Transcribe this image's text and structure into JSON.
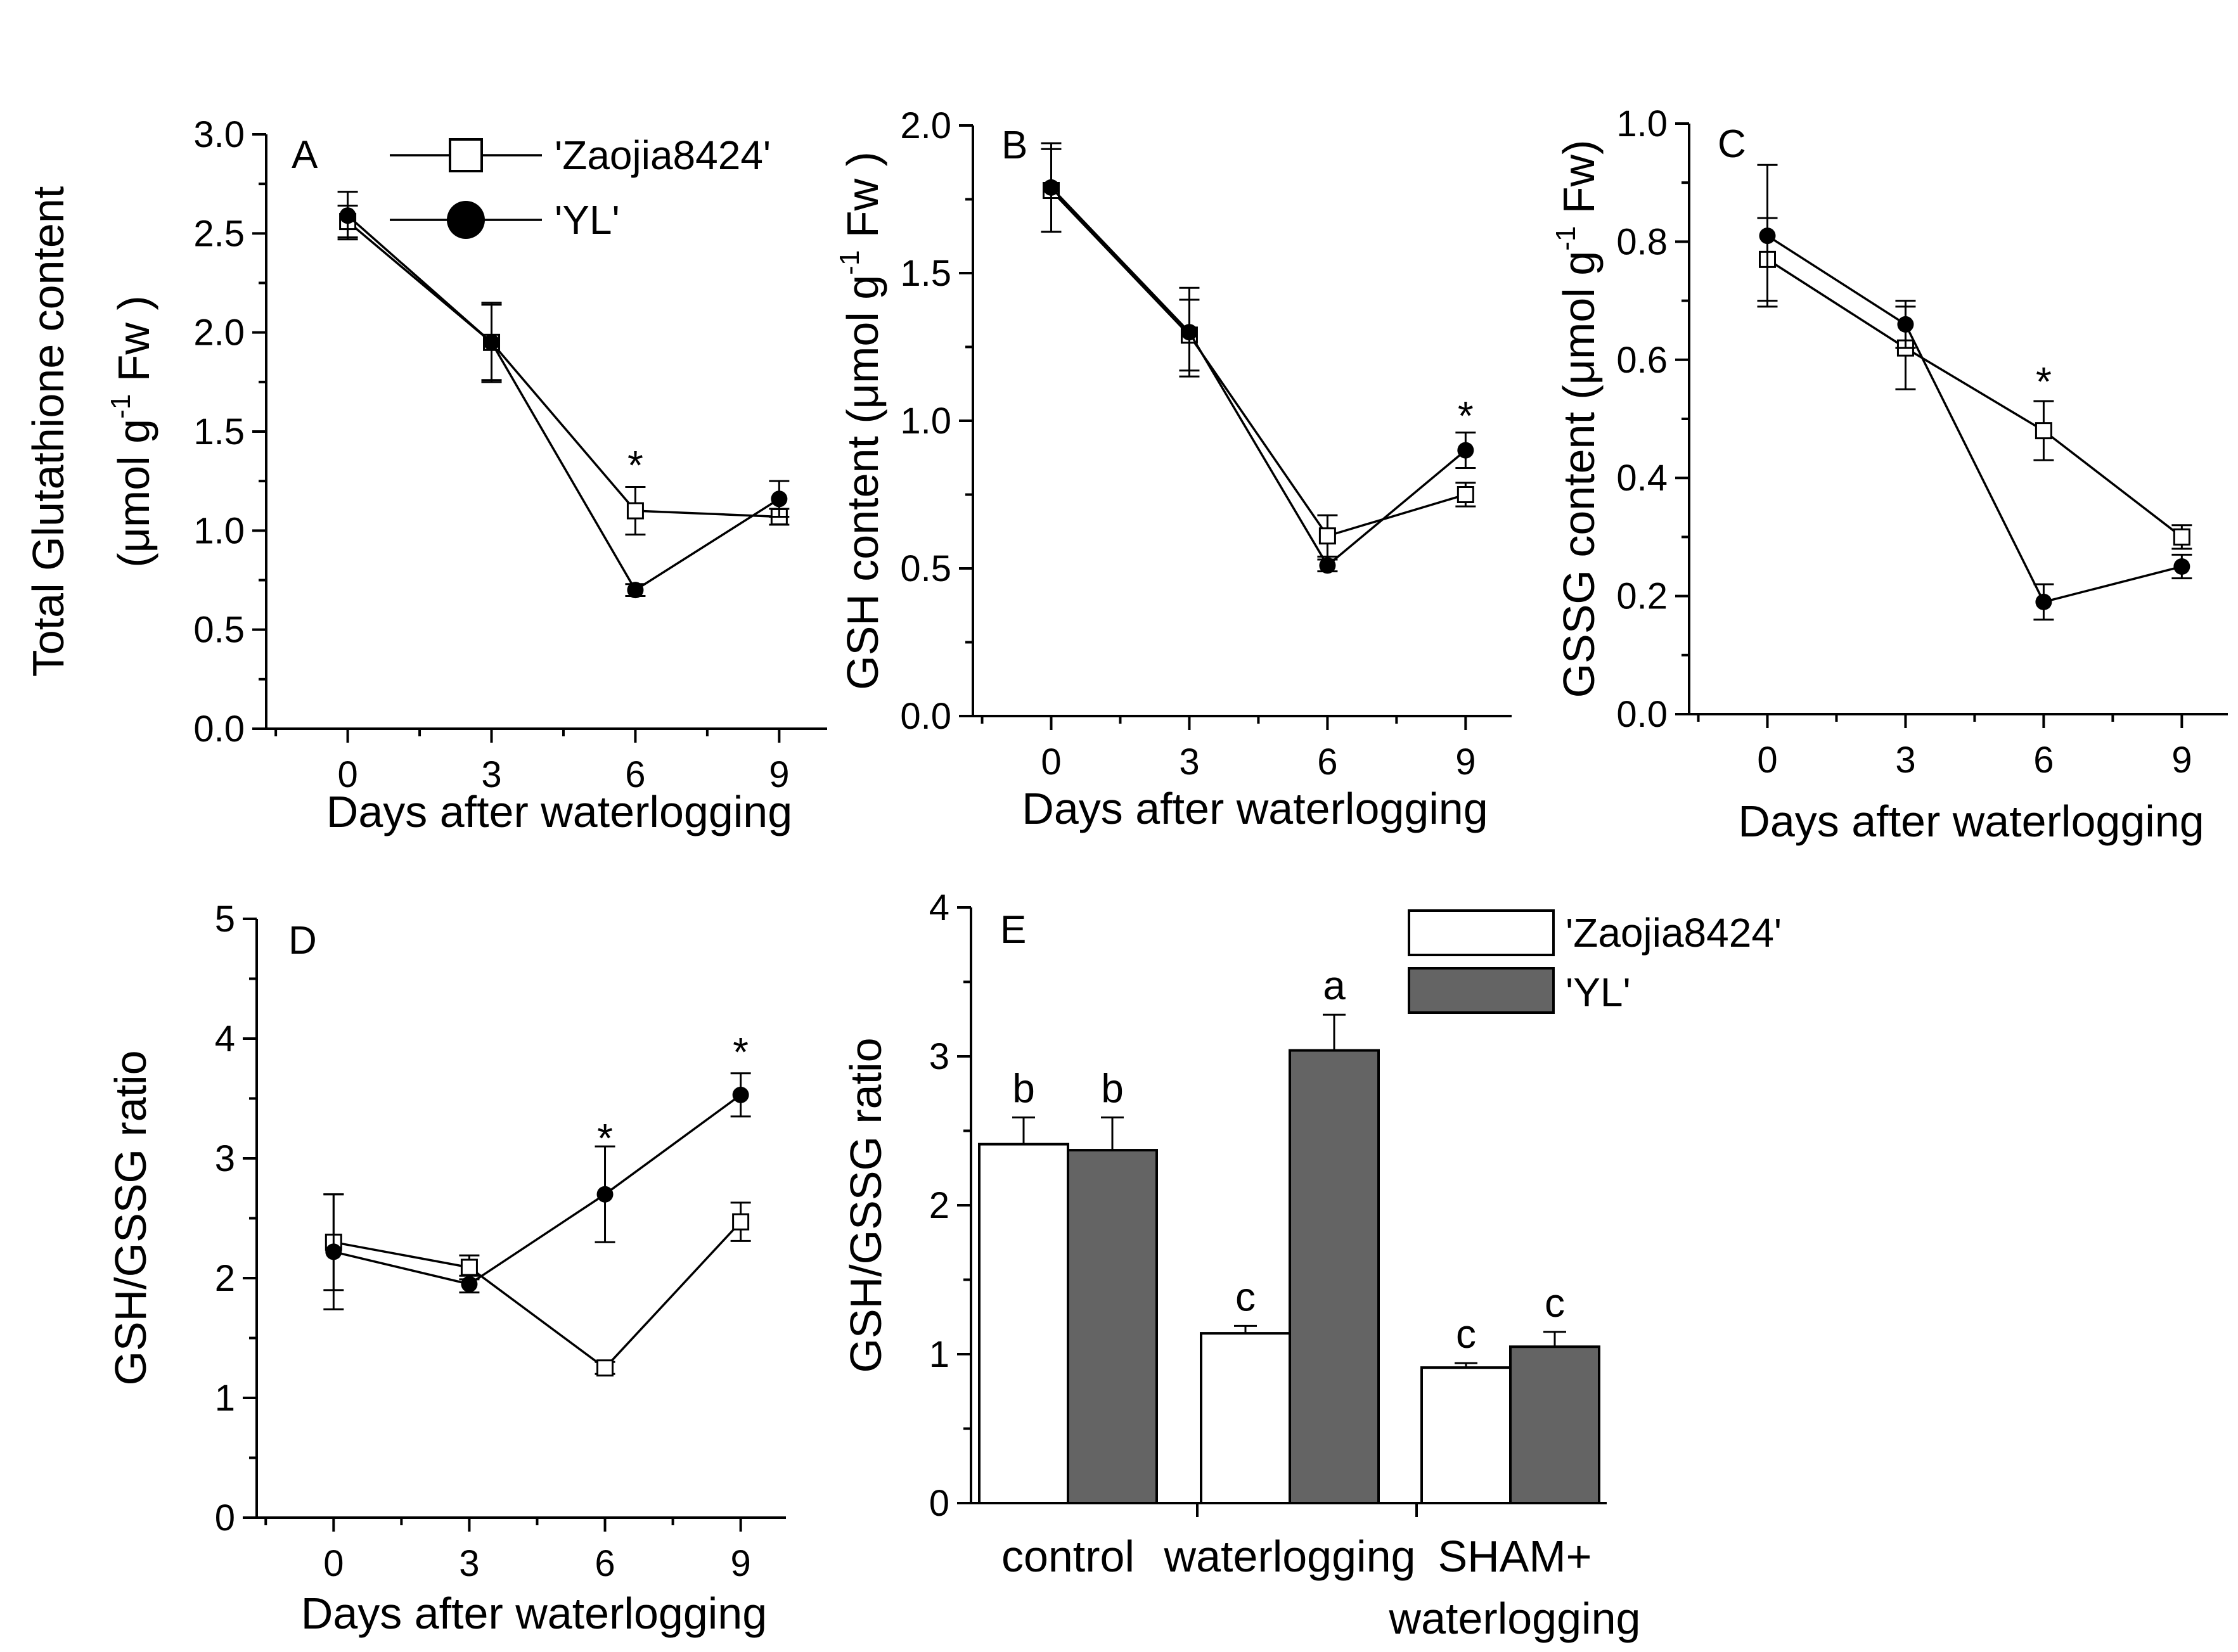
{
  "colors": {
    "open": "#ffffff",
    "filled": "#000000",
    "bar_dark": "#646464",
    "axis": "#000000"
  },
  "legend": {
    "series1": "'Zaojia8424'",
    "series2": "'YL'"
  },
  "chart_data": [
    {
      "id": "A",
      "type": "line",
      "panel_label": "A",
      "title": "",
      "xlabel": "Days after waterlogging",
      "ylabel_line1": "Total Glutathione content",
      "ylabel_line2_prefix": "(μmol g",
      "ylabel_sup": "-1",
      "ylabel_line2_suffix": " Fw )",
      "x": [
        0,
        3,
        6,
        9
      ],
      "xticks": [
        "0",
        "3",
        "6",
        "9"
      ],
      "ylim": [
        0,
        3.0
      ],
      "yticks": [
        "0.0",
        "0.5",
        "1.0",
        "1.5",
        "2.0",
        "2.5",
        "3.0"
      ],
      "series": [
        {
          "name": "'Zaojia8424'",
          "marker": "open-square",
          "values": [
            2.56,
            1.95,
            1.1,
            1.07
          ],
          "errors": [
            0.08,
            0.2,
            0.12,
            0.04
          ]
        },
        {
          "name": "'YL'",
          "marker": "filled-circle",
          "values": [
            2.59,
            1.95,
            0.7,
            1.16
          ],
          "errors": [
            0.12,
            0.19,
            0.03,
            0.09
          ]
        }
      ],
      "significance": [
        {
          "x": 6,
          "y": 1.35,
          "label": "*"
        }
      ],
      "legend_inside": true
    },
    {
      "id": "B",
      "type": "line",
      "panel_label": "B",
      "title": "",
      "xlabel": "Days after waterlogging",
      "ylabel_line1": "",
      "ylabel_line2_prefix": "GSH content (μmol g",
      "ylabel_sup": "-1",
      "ylabel_line2_suffix": " Fw )",
      "x": [
        0,
        3,
        6,
        9
      ],
      "xticks": [
        "0",
        "3",
        "6",
        "9"
      ],
      "ylim": [
        0,
        2.0
      ],
      "yticks": [
        "0.0",
        "0.5",
        "1.0",
        "1.5",
        "2.0"
      ],
      "series": [
        {
          "name": "'Zaojia8424'",
          "marker": "open-square",
          "values": [
            1.78,
            1.29,
            0.61,
            0.75
          ],
          "errors": [
            0.14,
            0.12,
            0.07,
            0.04
          ]
        },
        {
          "name": "'YL'",
          "marker": "filled-circle",
          "values": [
            1.79,
            1.3,
            0.51,
            0.9
          ],
          "errors": [
            0.15,
            0.15,
            0.02,
            0.06
          ]
        }
      ],
      "significance": [
        {
          "x": 9,
          "y": 1.03,
          "label": "*"
        }
      ]
    },
    {
      "id": "C",
      "type": "line",
      "panel_label": "C",
      "title": "",
      "xlabel": "Days after waterlogging",
      "ylabel_line1": "",
      "ylabel_line2_prefix": "GSSG content (μmol g",
      "ylabel_sup": "-1",
      "ylabel_line2_suffix": " Fw)",
      "x": [
        0,
        3,
        6,
        9
      ],
      "xticks": [
        "0",
        "3",
        "6",
        "9"
      ],
      "ylim": [
        0,
        1.0
      ],
      "yticks": [
        "0.0",
        "0.2",
        "0.4",
        "0.6",
        "0.8",
        "1.0"
      ],
      "series": [
        {
          "name": "'Zaojia8424'",
          "marker": "open-square",
          "values": [
            0.77,
            0.62,
            0.48,
            0.3
          ],
          "errors": [
            0.07,
            0.07,
            0.05,
            0.02
          ]
        },
        {
          "name": "'YL'",
          "marker": "filled-circle",
          "values": [
            0.81,
            0.66,
            0.19,
            0.25
          ],
          "errors": [
            0.12,
            0.04,
            0.03,
            0.02
          ]
        }
      ],
      "significance": [
        {
          "x": 6,
          "y": 0.57,
          "label": "*"
        }
      ]
    },
    {
      "id": "D",
      "type": "line",
      "panel_label": "D",
      "title": "",
      "xlabel": "Days after waterlogging",
      "ylabel_line1": "",
      "ylabel_line2_prefix": "GSH/GSSG ratio",
      "ylabel_sup": "",
      "ylabel_line2_suffix": "",
      "x": [
        0,
        3,
        6,
        9
      ],
      "xticks": [
        "0",
        "3",
        "6",
        "9"
      ],
      "ylim": [
        0,
        5
      ],
      "yticks": [
        "0",
        "1",
        "2",
        "3",
        "4",
        "5"
      ],
      "series": [
        {
          "name": "'Zaojia8424'",
          "marker": "open-square",
          "values": [
            2.3,
            2.09,
            1.25,
            2.47
          ],
          "errors": [
            0.4,
            0.1,
            0.05,
            0.16
          ]
        },
        {
          "name": "'YL'",
          "marker": "filled-circle",
          "values": [
            2.22,
            1.95,
            2.7,
            3.53
          ],
          "errors": [
            0.48,
            0.07,
            0.4,
            0.18
          ]
        }
      ],
      "significance": [
        {
          "x": 6,
          "y": 3.2,
          "label": "*"
        },
        {
          "x": 9,
          "y": 3.92,
          "label": "*"
        }
      ]
    },
    {
      "id": "E",
      "type": "bar",
      "panel_label": "E",
      "title": "",
      "xlabel": "",
      "ylabel": "GSH/GSSG ratio",
      "categories": [
        {
          "line1": "control",
          "line2": ""
        },
        {
          "line1": "waterlogging",
          "line2": ""
        },
        {
          "line1": "SHAM+",
          "line2": "waterlogging"
        }
      ],
      "ylim": [
        0,
        4
      ],
      "yticks": [
        "0",
        "1",
        "2",
        "3",
        "4"
      ],
      "series": [
        {
          "name": "'Zaojia8424'",
          "fill": "white",
          "values": [
            2.41,
            1.14,
            0.91
          ],
          "errors": [
            0.18,
            0.05,
            0.03
          ],
          "letters": [
            "b",
            "c",
            "c"
          ]
        },
        {
          "name": "'YL'",
          "fill": "dark",
          "values": [
            2.37,
            3.04,
            1.05
          ],
          "errors": [
            0.22,
            0.24,
            0.1
          ],
          "letters": [
            "b",
            "a",
            "c"
          ]
        }
      ],
      "legend_inside": true
    }
  ]
}
